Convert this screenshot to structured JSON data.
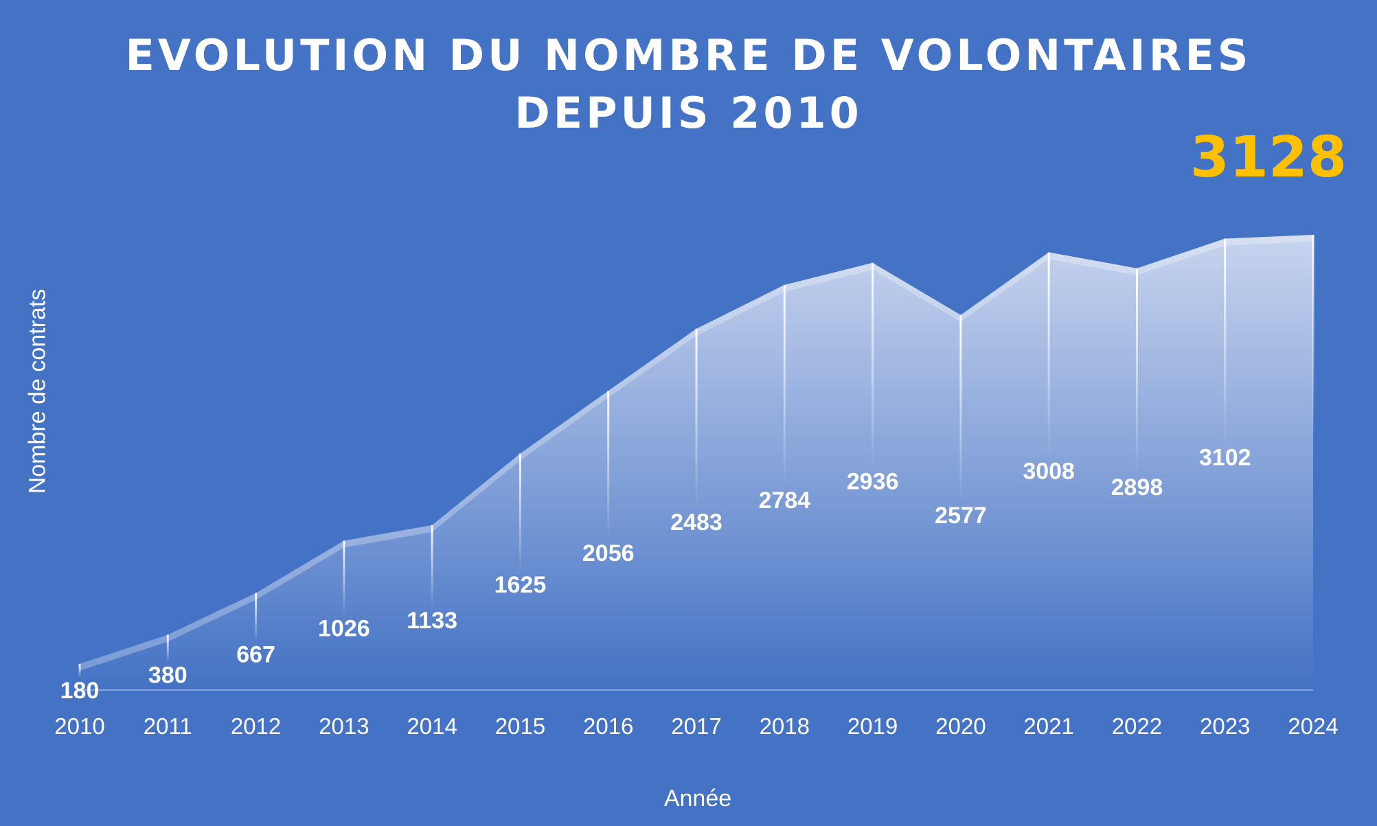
{
  "chart_data": {
    "type": "area",
    "title": "EVOLUTION DU NOMBRE DE VOLONTAIRES DEPUIS 2010",
    "title_lines": [
      "EVOLUTION DU NOMBRE DE VOLONTAIRES",
      "DEPUIS 2010"
    ],
    "highlight_value": "3128",
    "xlabel": "Année",
    "ylabel": "Nombre de contrats",
    "categories": [
      "2010",
      "2011",
      "2012",
      "2013",
      "2014",
      "2015",
      "2016",
      "2017",
      "2018",
      "2019",
      "2020",
      "2021",
      "2022",
      "2023",
      "2024"
    ],
    "values": [
      180,
      380,
      667,
      1026,
      1133,
      1625,
      2056,
      2483,
      2784,
      2936,
      2577,
      3008,
      2898,
      3102,
      3128
    ],
    "data_labels": [
      "180",
      "380",
      "667",
      "1026",
      "1133",
      "1625",
      "2056",
      "2483",
      "2784",
      "2936",
      "2577",
      "3008",
      "2898",
      "3102",
      ""
    ],
    "ylim": [
      0,
      3128
    ],
    "grid": false,
    "colors": {
      "background": "#4472c4",
      "area_top": "#c8d4ee",
      "area_bottom": "#4472c4",
      "highlight": "#ffc000",
      "text": "#ffffff"
    }
  }
}
